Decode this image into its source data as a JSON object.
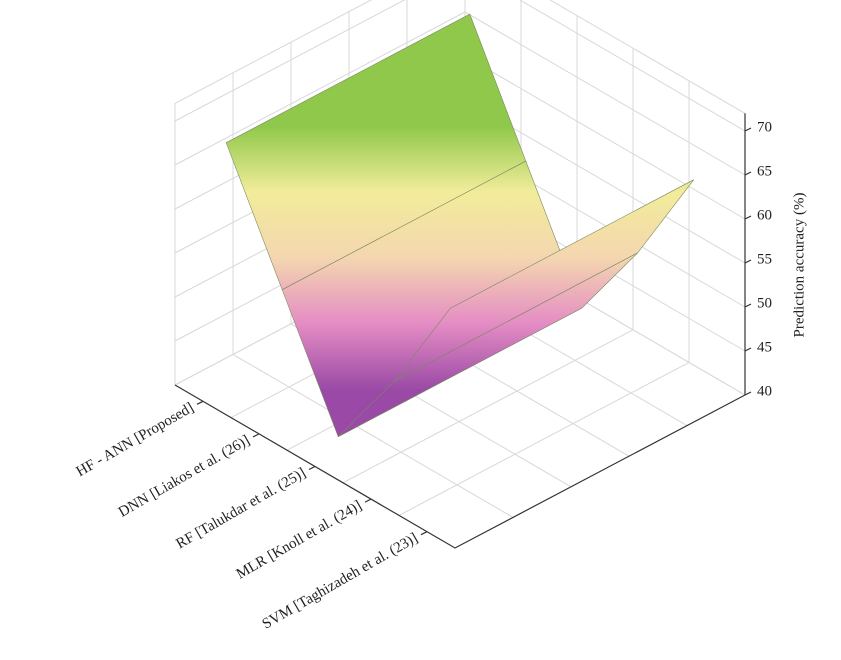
{
  "chart_data": {
    "type": "surface",
    "categories": [
      "HF - ANN [Proposed]",
      "DNN [Liakos et al. (26)]",
      "RF [Talukdar et al. (25)]",
      "MLR [Knoll et al. (24)]",
      "SVM [Taghizadeh et al. (23)]"
    ],
    "values": [
      68,
      55,
      42,
      52,
      64
    ],
    "ylabel": "Prediction accuracy (%)",
    "ylim": [
      40,
      72
    ],
    "yticks": [
      40,
      45,
      50,
      55,
      60,
      65,
      70
    ],
    "colors": [
      "#9a4aa6",
      "#e48cc4",
      "#f4d6b0",
      "#f2ec9a",
      "#8fc84a"
    ],
    "grid": true
  }
}
